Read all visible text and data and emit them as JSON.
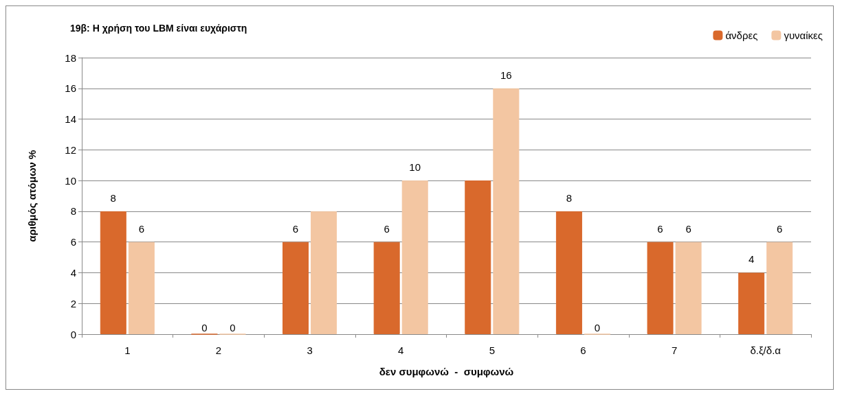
{
  "chart_data": {
    "type": "bar",
    "title": "19β: Η χρήση του LBM είναι ευχάριστη",
    "xlabel": "δεν συμφωνώ  -  συμφωνώ",
    "ylabel": "αριθμός ατόμων %",
    "categories": [
      "1",
      "2",
      "3",
      "4",
      "5",
      "6",
      "7",
      "δ.ξ/δ.α"
    ],
    "series": [
      {
        "name": "άνδρες",
        "color": "#d9692c",
        "values": [
          8,
          0,
          6,
          6,
          10,
          8,
          6,
          4
        ],
        "value_labels": [
          "8",
          "0",
          "6",
          "6",
          null,
          "8",
          "6",
          "4"
        ]
      },
      {
        "name": "γυναίκες",
        "color": "#f3c6a2",
        "values": [
          6,
          0,
          8,
          10,
          16,
          0,
          6,
          6
        ],
        "value_labels": [
          "6",
          "0",
          null,
          "10",
          "16",
          "0",
          "6",
          "6"
        ]
      }
    ],
    "ylim": [
      0,
      18
    ],
    "yticks": [
      0,
      2,
      4,
      6,
      8,
      10,
      12,
      14,
      16,
      18
    ],
    "grid": "y",
    "legend": "top right"
  }
}
